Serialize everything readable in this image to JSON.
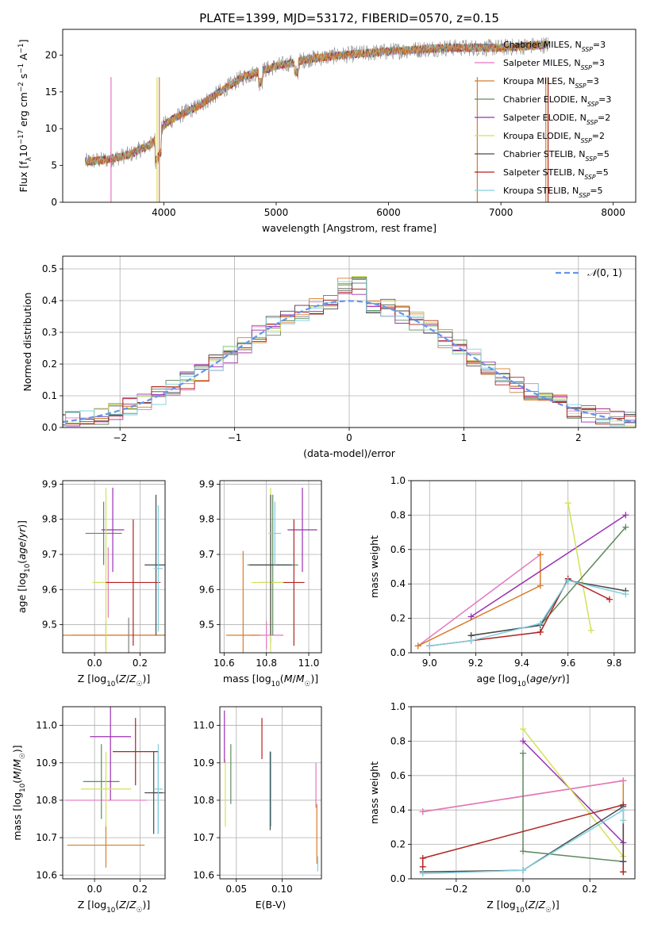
{
  "figure": {
    "title": "PLATE=1399, MJD=53172, FIBERID=0570, z=0.15"
  },
  "colors": {
    "Chabrier MILES": "#7f7f7f",
    "Salpeter MILES": "#e377c2",
    "Kroupa MILES": "#d87d2b",
    "Chabrier ELODIE": "#5f8a5f",
    "Salpeter ELODIE": "#9b30b5",
    "Kroupa ELODIE": "#d4e157",
    "Chabrier STELIB": "#4a4a4a",
    "Salpeter STELIB": "#b22222",
    "Kroupa STELIB": "#80d0e0",
    "normal": "#6495ed",
    "blue_extra": "#4a90d9"
  },
  "chart_data": [
    {
      "id": "spectrum",
      "type": "line",
      "title": "PLATE=1399, MJD=53172, FIBERID=0570, z=0.15",
      "xlabel": "wavelength [Angstrom, rest frame]",
      "ylabel": "Flux [f_λ 10^-17 erg cm^-2 s^-1 A^-1]",
      "xlim": [
        3100,
        8200
      ],
      "ylim": [
        0,
        23.5
      ],
      "xticks": [
        4000,
        5000,
        6000,
        7000,
        8000
      ],
      "yticks": [
        0,
        5,
        10,
        15,
        20
      ],
      "legend_position": "top-right",
      "legend": [
        "Chabrier MILES, N_SSP=3",
        "Salpeter MILES, N_SSP=3",
        "Kroupa MILES, N_SSP=3",
        "Chabrier ELODIE, N_SSP=3",
        "Salpeter ELODIE, N_SSP=2",
        "Kroupa ELODIE, N_SSP=2",
        "Chabrier STELIB, N_SSP=5",
        "Salpeter STELIB, N_SSP=5",
        "Kroupa STELIB, N_SSP=5"
      ],
      "continuum_x": [
        3300,
        3500,
        3700,
        3900,
        4000,
        4100,
        4300,
        4500,
        4700,
        5000,
        5300,
        5600,
        6000,
        6500,
        7000,
        7500
      ],
      "continuum_y": [
        5.5,
        5.8,
        6.5,
        8.0,
        10.5,
        11.5,
        13.0,
        15.0,
        17.0,
        18.5,
        19.5,
        20.0,
        20.5,
        21.0,
        21.0,
        21.5
      ],
      "grid": false
    },
    {
      "id": "residuals",
      "type": "line",
      "xlabel": "(data-model)/error",
      "ylabel": "Normed distribution",
      "xlim": [
        -2.5,
        2.5
      ],
      "ylim": [
        0,
        0.54
      ],
      "xticks": [
        -2,
        -1,
        0,
        1,
        2
      ],
      "yticks": [
        0.0,
        0.1,
        0.2,
        0.3,
        0.4,
        0.5
      ],
      "legend_position": "top-right",
      "normal_label": "N(0,1)",
      "grid": true
    },
    {
      "id": "age-vs-Z",
      "type": "scatter",
      "xlabel": "Z [log10(Z/Z☉)]",
      "ylabel": "age [log10(age/yr)]",
      "xlim": [
        -0.14,
        0.31
      ],
      "ylim": [
        9.42,
        9.91
      ],
      "xticks": [
        0.0,
        0.2
      ],
      "yticks": [
        9.5,
        9.6,
        9.7,
        9.8,
        9.9
      ],
      "points": [
        {
          "model": "Chabrier MILES",
          "x": 0.15,
          "y": 9.47,
          "xerr": 0.25,
          "yerr": 0.05
        },
        {
          "model": "Salpeter MILES",
          "x": 0.06,
          "y": 9.62,
          "xerr": 0.06,
          "yerr": 0.1
        },
        {
          "model": "Kroupa MILES",
          "x": 0.05,
          "y": 9.47,
          "xerr": 0.26,
          "yerr": 0.04
        },
        {
          "model": "Chabrier ELODIE",
          "x": 0.04,
          "y": 9.76,
          "xerr": 0.08,
          "yerr": 0.09
        },
        {
          "model": "Salpeter ELODIE",
          "x": 0.08,
          "y": 9.77,
          "xerr": 0.05,
          "yerr": 0.12
        },
        {
          "model": "Kroupa ELODIE",
          "x": 0.05,
          "y": 9.62,
          "xerr": 0.06,
          "yerr": 0.27
        },
        {
          "model": "Chabrier STELIB",
          "x": 0.27,
          "y": 9.67,
          "xerr": 0.05,
          "yerr": 0.2
        },
        {
          "model": "Salpeter STELIB",
          "x": 0.17,
          "y": 9.62,
          "xerr": 0.12,
          "yerr": 0.18
        },
        {
          "model": "Kroupa STELIB",
          "x": 0.28,
          "y": 9.66,
          "xerr": 0.02,
          "yerr": 0.18
        }
      ],
      "grid": true
    },
    {
      "id": "age-vs-mass",
      "type": "scatter",
      "xlabel": "mass [log10(M/M☉)]",
      "ylabel": "",
      "xlim": [
        10.58,
        11.06
      ],
      "ylim": [
        9.42,
        9.91
      ],
      "xticks": [
        10.6,
        10.8,
        11.0
      ],
      "yticks": [
        9.5,
        9.6,
        9.7,
        9.8,
        9.9
      ],
      "points": [
        {
          "model": "Chabrier MILES",
          "x": 10.82,
          "y": 9.62,
          "xerr": 0.06,
          "yerr": 0.17
        },
        {
          "model": "Salpeter MILES",
          "x": 10.8,
          "y": 9.47,
          "xerr": 0.08,
          "yerr": 0.04
        },
        {
          "model": "Kroupa MILES",
          "x": 10.69,
          "y": 9.47,
          "xerr": 0.08,
          "yerr": 0.24
        },
        {
          "model": "Chabrier ELODIE",
          "x": 10.83,
          "y": 9.67,
          "xerr": 0.12,
          "yerr": 0.2
        },
        {
          "model": "Salpeter ELODIE",
          "x": 10.97,
          "y": 9.77,
          "xerr": 0.07,
          "yerr": 0.12
        },
        {
          "model": "Kroupa ELODIE",
          "x": 10.82,
          "y": 9.62,
          "xerr": 0.09,
          "yerr": 0.27
        },
        {
          "model": "Chabrier STELIB",
          "x": 10.82,
          "y": 9.67,
          "xerr": 0.1,
          "yerr": 0.2
        },
        {
          "model": "Salpeter STELIB",
          "x": 10.93,
          "y": 9.62,
          "xerr": 0.05,
          "yerr": 0.18
        },
        {
          "model": "Kroupa STELIB",
          "x": 10.84,
          "y": 9.76,
          "xerr": 0.03,
          "yerr": 0.09
        }
      ],
      "grid": true
    },
    {
      "id": "weight-vs-age",
      "type": "line",
      "xlabel": "age [log10(age/yr)]",
      "ylabel": "mass weight",
      "xlim": [
        8.92,
        9.89
      ],
      "ylim": [
        0,
        1.0
      ],
      "xticks": [
        9.0,
        9.2,
        9.4,
        9.6,
        9.8
      ],
      "yticks": [
        0.0,
        0.2,
        0.4,
        0.6,
        0.8,
        1.0
      ],
      "series": [
        {
          "model": "Salpeter MILES",
          "x": [
            8.95,
            9.48
          ],
          "y": [
            0.04,
            0.57
          ]
        },
        {
          "model": "Kroupa MILES",
          "x": [
            8.95,
            9.48,
            9.48
          ],
          "y": [
            0.04,
            0.39,
            0.57
          ]
        },
        {
          "model": "Salpeter ELODIE",
          "x": [
            9.18,
            9.85
          ],
          "y": [
            0.21,
            0.8
          ]
        },
        {
          "model": "Kroupa ELODIE",
          "x": [
            9.6,
            9.7
          ],
          "y": [
            0.87,
            0.13
          ]
        },
        {
          "model": "Chabrier ELODIE",
          "x": [
            9.18,
            9.48,
            9.85
          ],
          "y": [
            0.1,
            0.16,
            0.73
          ]
        },
        {
          "model": "Salpeter STELIB",
          "x": [
            9.0,
            9.18,
            9.48,
            9.6,
            9.78
          ],
          "y": [
            0.04,
            0.07,
            0.12,
            0.43,
            0.31
          ]
        },
        {
          "model": "Chabrier STELIB",
          "x": [
            9.18,
            9.48,
            9.6,
            9.85
          ],
          "y": [
            0.1,
            0.16,
            0.42,
            0.36
          ]
        },
        {
          "model": "Kroupa STELIB",
          "x": [
            9.0,
            9.18,
            9.48,
            9.6,
            9.85
          ],
          "y": [
            0.04,
            0.07,
            0.17,
            0.42,
            0.34
          ]
        }
      ],
      "grid": true
    },
    {
      "id": "mass-vs-Z",
      "type": "scatter",
      "xlabel": "Z [log10(Z/Z☉)]",
      "ylabel": "mass [log10(M/M☉)]",
      "xlim": [
        -0.14,
        0.31
      ],
      "ylim": [
        10.59,
        11.05
      ],
      "xticks": [
        0.0,
        0.2
      ],
      "yticks": [
        10.6,
        10.7,
        10.8,
        10.9,
        11.0
      ],
      "points": [
        {
          "model": "Chabrier MILES",
          "x": 0.28,
          "y": 10.82,
          "xerr": 0.03,
          "yerr": 0.11
        },
        {
          "model": "Salpeter MILES",
          "x": 0.05,
          "y": 10.8,
          "xerr": 0.18,
          "yerr": 0.0
        },
        {
          "model": "Kroupa MILES",
          "x": 0.05,
          "y": 10.68,
          "xerr": 0.17,
          "yerr": 0.06
        },
        {
          "model": "Chabrier ELODIE",
          "x": 0.03,
          "y": 10.85,
          "xerr": 0.08,
          "yerr": 0.1
        },
        {
          "model": "Salpeter ELODIE",
          "x": 0.07,
          "y": 10.97,
          "xerr": 0.09,
          "yerr": 0.17
        },
        {
          "model": "Kroupa ELODIE",
          "x": 0.05,
          "y": 10.83,
          "xerr": 0.11,
          "yerr": 0.1
        },
        {
          "model": "Chabrier STELIB",
          "x": 0.26,
          "y": 10.82,
          "xerr": 0.04,
          "yerr": 0.11
        },
        {
          "model": "Salpeter STELIB",
          "x": 0.18,
          "y": 10.93,
          "xerr": 0.1,
          "yerr": 0.09
        },
        {
          "model": "Kroupa STELIB",
          "x": 0.28,
          "y": 10.83,
          "xerr": 0.02,
          "yerr": 0.12
        }
      ],
      "grid": true
    },
    {
      "id": "mass-vs-ebv",
      "type": "scatter",
      "xlabel": "E(B-V)",
      "ylabel": "",
      "xlim": [
        0.032,
        0.143
      ],
      "ylim": [
        10.59,
        11.05
      ],
      "xticks": [
        0.05,
        0.1
      ],
      "yticks": [
        10.6,
        10.7,
        10.8,
        10.9,
        11.0
      ],
      "vsegments": [
        {
          "model": "Salpeter ELODIE",
          "x": 0.037,
          "y0": 10.9,
          "y1": 11.04
        },
        {
          "model": "Kroupa ELODIE",
          "x": 0.038,
          "y0": 10.73,
          "y1": 10.91
        },
        {
          "model": "Chabrier ELODIE",
          "x": 0.044,
          "y0": 10.79,
          "y1": 10.95
        },
        {
          "model": "Salpeter STELIB",
          "x": 0.078,
          "y0": 10.91,
          "y1": 11.02
        },
        {
          "model": "Chabrier STELIB",
          "x": 0.087,
          "y0": 10.72,
          "y1": 10.93
        },
        {
          "model": "Kroupa STELIB",
          "x": 0.088,
          "y0": 10.73,
          "y1": 10.93
        },
        {
          "model": "Salpeter MILES",
          "x": 0.137,
          "y0": 10.78,
          "y1": 10.9
        },
        {
          "model": "Kroupa MILES",
          "x": 0.138,
          "y0": 10.63,
          "y1": 10.79
        },
        {
          "model": "Kroupa STELIB",
          "x": 0.139,
          "y0": 10.61,
          "y1": 10.65
        }
      ],
      "grid": true
    },
    {
      "id": "weight-vs-Z",
      "type": "line",
      "xlabel": "Z [log10(Z/Z☉)]",
      "ylabel": "mass weight",
      "xlim": [
        -0.335,
        0.335
      ],
      "ylim": [
        0,
        1.0
      ],
      "xticks": [
        -0.2,
        0.0,
        0.2
      ],
      "yticks": [
        0.0,
        0.2,
        0.4,
        0.6,
        0.8,
        1.0
      ],
      "series": [
        {
          "model": "Kroupa MILES",
          "x": [
            -0.3,
            0.3,
            0.3
          ],
          "y": [
            0.39,
            0.57,
            0.04
          ]
        },
        {
          "model": "Salpeter MILES",
          "x": [
            -0.3,
            0.3
          ],
          "y": [
            0.39,
            0.57
          ]
        },
        {
          "model": "Salpeter ELODIE",
          "x": [
            0.0,
            0.3
          ],
          "y": [
            0.8,
            0.21
          ]
        },
        {
          "model": "Kroupa ELODIE",
          "x": [
            0.0,
            0.3
          ],
          "y": [
            0.87,
            0.13
          ]
        },
        {
          "model": "Chabrier ELODIE",
          "x": [
            0.0,
            0.0,
            0.3
          ],
          "y": [
            0.73,
            0.16,
            0.1
          ]
        },
        {
          "model": "Salpeter STELIB",
          "x": [
            -0.3,
            -0.3,
            0.3,
            0.3
          ],
          "y": [
            0.07,
            0.12,
            0.43,
            0.04
          ]
        },
        {
          "model": "Chabrier STELIB",
          "x": [
            -0.3,
            0.0,
            0.3,
            0.3
          ],
          "y": [
            0.04,
            0.05,
            0.42,
            0.1
          ]
        },
        {
          "model": "Kroupa STELIB",
          "x": [
            -0.3,
            0.0,
            0.3,
            0.3
          ],
          "y": [
            0.03,
            0.05,
            0.4,
            0.34
          ]
        }
      ],
      "grid": true
    }
  ]
}
